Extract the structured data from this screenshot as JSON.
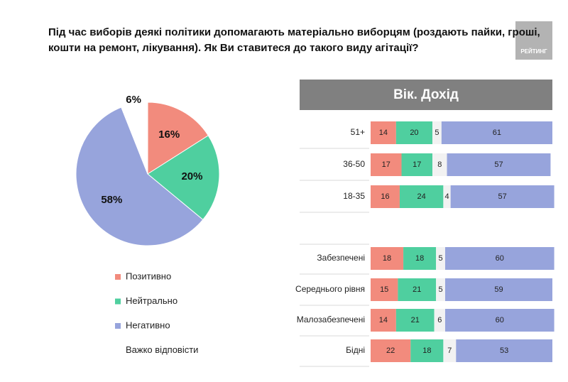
{
  "logo": "РЕЙТИНГ",
  "chart_data": [
    {
      "type": "pie",
      "title": "Під час виборів деякі політики допомагають матеріально виборцям (роздають пайки, гроші, кошти на ремонт, лікування). Як Ви ставитеся до такого виду агітації?",
      "categories": [
        "Позитивно",
        "Нейтрально",
        "Негативно",
        "Важко відповісти"
      ],
      "values": [
        16,
        20,
        58,
        6
      ],
      "value_labels": [
        "16%",
        "20%",
        "58%",
        "6%"
      ],
      "colors": [
        "#f28b7d",
        "#4fcf9f",
        "#97a4dc",
        "#ffffff"
      ]
    },
    {
      "type": "stacked-bar",
      "title": "Вік. Дохід",
      "categories": [
        "51+",
        "36-50",
        "18-35",
        null,
        "Забезпечені",
        "Середнього рівня",
        "Малозабезпечені",
        "Бідні"
      ],
      "xlim": [
        0,
        100
      ],
      "series": [
        {
          "color": "#f28b7d",
          "values": [
            14,
            17,
            16,
            null,
            18,
            15,
            14,
            22
          ]
        },
        {
          "color": "#4fcf9f",
          "values": [
            20,
            17,
            24,
            null,
            18,
            21,
            21,
            18
          ]
        },
        {
          "color": "#f2f2f2",
          "values": [
            5,
            8,
            4,
            null,
            5,
            5,
            6,
            7
          ]
        },
        {
          "color": "#97a4dc",
          "values": [
            61,
            57,
            57,
            null,
            60,
            59,
            60,
            53
          ]
        }
      ]
    }
  ]
}
